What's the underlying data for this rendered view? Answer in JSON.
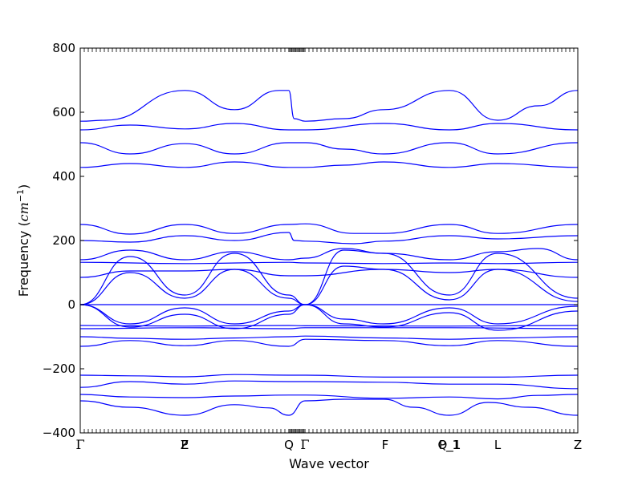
{
  "chart_data": {
    "type": "line",
    "xlabel": "Wave vector",
    "ylabel": {
      "text": "Frequency (",
      "unit": "cm",
      "exponent": "−1",
      "close": ")"
    },
    "ylim": [
      -400,
      800
    ],
    "xlim": [
      0,
      1
    ],
    "yticks": [
      "−400",
      "−200",
      "0",
      "200",
      "400",
      "600",
      "800"
    ],
    "ytick_values": [
      -400,
      -200,
      0,
      200,
      400,
      600,
      800
    ],
    "grid": false,
    "line_color": "#0000ff",
    "high_symmetry_points": [
      {
        "label": "Γ",
        "x": 0.0
      },
      {
        "label": "Z",
        "x": 0.2097
      },
      {
        "label": "P",
        "x": 0.2097
      },
      {
        "label": "Q",
        "x": 0.4194
      },
      {
        "label": "Γ",
        "x": 0.4516
      },
      {
        "label": "F",
        "x": 0.6129
      },
      {
        "label": "P_1",
        "x": 0.7419
      },
      {
        "label": "Q_1",
        "x": 0.7419
      },
      {
        "label": "L",
        "x": 0.8387
      },
      {
        "label": "Z",
        "x": 1.0
      }
    ],
    "series": [
      {
        "values": [
          [
            0,
            -300
          ],
          [
            0.1,
            -320
          ],
          [
            0.21,
            -345
          ],
          [
            0.31,
            -312
          ],
          [
            0.38,
            -322
          ],
          [
            0.419,
            -345
          ],
          [
            0.452,
            -300
          ],
          [
            0.53,
            -295
          ],
          [
            0.61,
            -295
          ],
          [
            0.67,
            -320
          ],
          [
            0.742,
            -345
          ],
          [
            0.82,
            -305
          ],
          [
            0.9,
            -320
          ],
          [
            1.0,
            -345
          ]
        ]
      },
      {
        "values": [
          [
            0,
            -280
          ],
          [
            0.1,
            -288
          ],
          [
            0.21,
            -290
          ],
          [
            0.31,
            -285
          ],
          [
            0.419,
            -282
          ],
          [
            0.452,
            -282
          ],
          [
            0.61,
            -292
          ],
          [
            0.742,
            -288
          ],
          [
            0.839,
            -294
          ],
          [
            0.92,
            -283
          ],
          [
            1.0,
            -280
          ]
        ]
      },
      {
        "values": [
          [
            0,
            -258
          ],
          [
            0.1,
            -240
          ],
          [
            0.21,
            -248
          ],
          [
            0.31,
            -238
          ],
          [
            0.419,
            -240
          ],
          [
            0.452,
            -240
          ],
          [
            0.61,
            -242
          ],
          [
            0.742,
            -248
          ],
          [
            0.839,
            -248
          ],
          [
            1.0,
            -262
          ]
        ]
      },
      {
        "values": [
          [
            0,
            -220
          ],
          [
            0.1,
            -222
          ],
          [
            0.21,
            -225
          ],
          [
            0.31,
            -218
          ],
          [
            0.419,
            -220
          ],
          [
            0.452,
            -220
          ],
          [
            0.61,
            -226
          ],
          [
            0.742,
            -226
          ],
          [
            0.839,
            -226
          ],
          [
            1.0,
            -220
          ]
        ]
      },
      {
        "values": [
          [
            0,
            -130
          ],
          [
            0.1,
            -112
          ],
          [
            0.21,
            -128
          ],
          [
            0.31,
            -112
          ],
          [
            0.419,
            -130
          ],
          [
            0.452,
            -108
          ],
          [
            0.61,
            -112
          ],
          [
            0.742,
            -128
          ],
          [
            0.839,
            -112
          ],
          [
            1.0,
            -130
          ]
        ]
      },
      {
        "values": [
          [
            0,
            -100
          ],
          [
            0.1,
            -105
          ],
          [
            0.21,
            -108
          ],
          [
            0.31,
            -104
          ],
          [
            0.419,
            -100
          ],
          [
            0.452,
            -98
          ],
          [
            0.61,
            -104
          ],
          [
            0.742,
            -108
          ],
          [
            0.839,
            -104
          ],
          [
            1.0,
            -100
          ]
        ]
      },
      {
        "values": [
          [
            0,
            -75
          ],
          [
            0.21,
            -72
          ],
          [
            0.419,
            -75
          ],
          [
            0.452,
            -72
          ],
          [
            0.742,
            -72
          ],
          [
            1.0,
            -75
          ]
        ]
      },
      {
        "values": [
          [
            0,
            -65
          ],
          [
            0.21,
            -67
          ],
          [
            0.419,
            -65
          ],
          [
            0.452,
            -66
          ],
          [
            0.742,
            -67
          ],
          [
            1.0,
            -65
          ]
        ]
      },
      {
        "values": [
          [
            0,
            0
          ],
          [
            0.1,
            -60
          ],
          [
            0.21,
            -10
          ],
          [
            0.31,
            -60
          ],
          [
            0.419,
            -20
          ],
          [
            0.452,
            0
          ],
          [
            0.53,
            -45
          ],
          [
            0.61,
            -60
          ],
          [
            0.742,
            -10
          ],
          [
            0.839,
            -60
          ],
          [
            1.0,
            -5
          ]
        ]
      },
      {
        "values": [
          [
            0,
            0
          ],
          [
            0.1,
            -70
          ],
          [
            0.21,
            -30
          ],
          [
            0.31,
            -75
          ],
          [
            0.419,
            -30
          ],
          [
            0.452,
            0
          ],
          [
            0.53,
            -60
          ],
          [
            0.61,
            -70
          ],
          [
            0.742,
            -25
          ],
          [
            0.839,
            -80
          ],
          [
            1.0,
            -20
          ]
        ]
      },
      {
        "values": [
          [
            0,
            0
          ],
          [
            1.0,
            0
          ]
        ]
      },
      {
        "values": [
          [
            0,
            0
          ],
          [
            0.1,
            100
          ],
          [
            0.21,
            20
          ],
          [
            0.31,
            110
          ],
          [
            0.419,
            20
          ],
          [
            0.452,
            0
          ],
          [
            0.53,
            120
          ],
          [
            0.61,
            110
          ],
          [
            0.742,
            15
          ],
          [
            0.839,
            110
          ],
          [
            1.0,
            10
          ]
        ]
      },
      {
        "values": [
          [
            0,
            0
          ],
          [
            0.1,
            150
          ],
          [
            0.21,
            30
          ],
          [
            0.31,
            160
          ],
          [
            0.419,
            30
          ],
          [
            0.452,
            0
          ],
          [
            0.53,
            170
          ],
          [
            0.61,
            160
          ],
          [
            0.742,
            30
          ],
          [
            0.839,
            160
          ],
          [
            1.0,
            20
          ]
        ]
      },
      {
        "values": [
          [
            0,
            85
          ],
          [
            0.1,
            105
          ],
          [
            0.21,
            105
          ],
          [
            0.31,
            110
          ],
          [
            0.419,
            90
          ],
          [
            0.452,
            90
          ],
          [
            0.61,
            110
          ],
          [
            0.742,
            100
          ],
          [
            0.839,
            110
          ],
          [
            1.0,
            85
          ]
        ]
      },
      {
        "values": [
          [
            0,
            132
          ],
          [
            0.21,
            128
          ],
          [
            0.419,
            132
          ],
          [
            0.452,
            130
          ],
          [
            0.61,
            128
          ],
          [
            0.742,
            130
          ],
          [
            0.839,
            128
          ],
          [
            1.0,
            132
          ]
        ]
      },
      {
        "values": [
          [
            0,
            140
          ],
          [
            0.1,
            170
          ],
          [
            0.21,
            140
          ],
          [
            0.31,
            165
          ],
          [
            0.419,
            140
          ],
          [
            0.452,
            145
          ],
          [
            0.53,
            175
          ],
          [
            0.61,
            160
          ],
          [
            0.742,
            140
          ],
          [
            0.839,
            165
          ],
          [
            0.92,
            175
          ],
          [
            1.0,
            140
          ]
        ]
      },
      {
        "values": [
          [
            0,
            200
          ],
          [
            0.1,
            195
          ],
          [
            0.21,
            215
          ],
          [
            0.31,
            200
          ],
          [
            0.419,
            225
          ],
          [
            0.43,
            200
          ],
          [
            0.452,
            198
          ],
          [
            0.55,
            190
          ],
          [
            0.61,
            198
          ],
          [
            0.742,
            215
          ],
          [
            0.839,
            205
          ],
          [
            1.0,
            215
          ]
        ]
      },
      {
        "values": [
          [
            0,
            250
          ],
          [
            0.1,
            220
          ],
          [
            0.21,
            250
          ],
          [
            0.31,
            222
          ],
          [
            0.419,
            250
          ],
          [
            0.452,
            252
          ],
          [
            0.55,
            222
          ],
          [
            0.61,
            222
          ],
          [
            0.742,
            250
          ],
          [
            0.839,
            222
          ],
          [
            1.0,
            250
          ]
        ]
      },
      {
        "values": [
          [
            0,
            428
          ],
          [
            0.1,
            440
          ],
          [
            0.21,
            428
          ],
          [
            0.31,
            445
          ],
          [
            0.419,
            428
          ],
          [
            0.452,
            428
          ],
          [
            0.53,
            435
          ],
          [
            0.61,
            445
          ],
          [
            0.742,
            428
          ],
          [
            0.839,
            440
          ],
          [
            1.0,
            428
          ]
        ]
      },
      {
        "values": [
          [
            0,
            505
          ],
          [
            0.1,
            470
          ],
          [
            0.21,
            502
          ],
          [
            0.31,
            470
          ],
          [
            0.419,
            505
          ],
          [
            0.452,
            505
          ],
          [
            0.53,
            485
          ],
          [
            0.61,
            470
          ],
          [
            0.742,
            505
          ],
          [
            0.839,
            470
          ],
          [
            1.0,
            505
          ]
        ]
      },
      {
        "values": [
          [
            0,
            545
          ],
          [
            0.1,
            560
          ],
          [
            0.21,
            548
          ],
          [
            0.31,
            565
          ],
          [
            0.419,
            545
          ],
          [
            0.452,
            545
          ],
          [
            0.61,
            565
          ],
          [
            0.742,
            545
          ],
          [
            0.839,
            565
          ],
          [
            1.0,
            545
          ]
        ]
      },
      {
        "values": [
          [
            0,
            572
          ],
          [
            0.05,
            575
          ],
          [
            0.21,
            668
          ],
          [
            0.31,
            608
          ],
          [
            0.4,
            668
          ],
          [
            0.419,
            668
          ],
          [
            0.43,
            580
          ],
          [
            0.452,
            572
          ],
          [
            0.53,
            580
          ],
          [
            0.61,
            608
          ],
          [
            0.742,
            668
          ],
          [
            0.839,
            575
          ],
          [
            0.92,
            620
          ],
          [
            1.0,
            668
          ]
        ]
      }
    ]
  }
}
